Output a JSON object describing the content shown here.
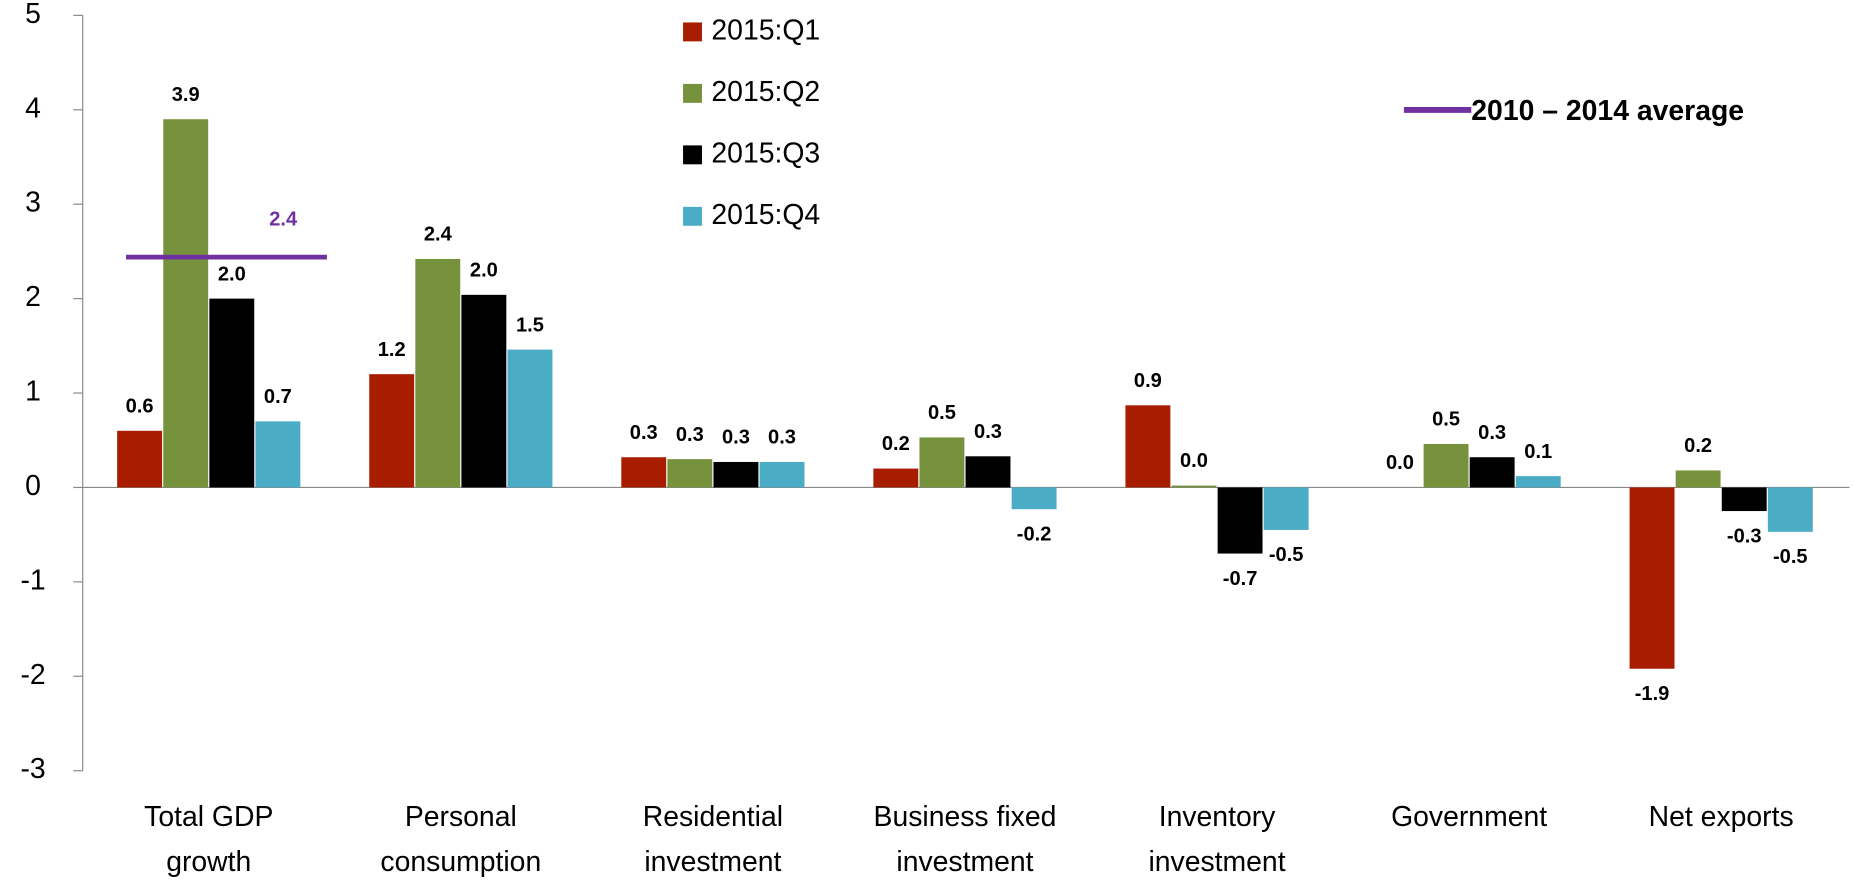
{
  "chart_data": {
    "type": "bar",
    "categories": [
      [
        "Total GDP",
        "growth"
      ],
      [
        "Personal",
        "consumption"
      ],
      [
        "Residential",
        "investment"
      ],
      [
        "Business fixed",
        "investment"
      ],
      [
        "Inventory",
        "investment"
      ],
      [
        "Government"
      ],
      [
        "Net exports"
      ]
    ],
    "series": [
      {
        "name": "2015:Q1",
        "color": "#a81c00",
        "values": [
          0.6,
          1.2,
          0.32,
          0.2,
          0.87,
          0,
          -1.92
        ],
        "value_labels": [
          "0.6",
          "1.2",
          "0.3",
          "0.2",
          "0.9",
          "0.0",
          "-1.9"
        ]
      },
      {
        "name": "2015:Q2",
        "color": "#76923c",
        "values": [
          3.9,
          2.42,
          0.3,
          0.53,
          0.02,
          0.46,
          0.18
        ],
        "value_labels": [
          "3.9",
          "2.4",
          "0.3",
          "0.5",
          "0.0",
          "0.5",
          "0.2"
        ]
      },
      {
        "name": "2015:Q3",
        "color": "#000000",
        "values": [
          2.0,
          2.04,
          0.27,
          0.33,
          -0.7,
          0.32,
          -0.25
        ],
        "value_labels": [
          "2.0",
          "2.0",
          "0.3",
          "0.3",
          "-0.7",
          "0.3",
          "-0.3"
        ]
      },
      {
        "name": "2015:Q4",
        "color": "#4bacc6",
        "values": [
          0.7,
          1.46,
          0.27,
          -0.23,
          -0.45,
          0.12,
          -0.47
        ],
        "value_labels": [
          "0.7",
          "1.5",
          "0.3",
          "-0.2",
          "-0.5",
          "0.1",
          "-0.5"
        ]
      }
    ],
    "average": {
      "name": "2010 – 2014 average",
      "color": "#7030a0",
      "value": 2.44,
      "value_label": "2.4",
      "category": 0
    },
    "ylim": [
      -3,
      5
    ],
    "yticks": [
      -3,
      -2,
      -1,
      0,
      1,
      2,
      3,
      4,
      5
    ]
  }
}
